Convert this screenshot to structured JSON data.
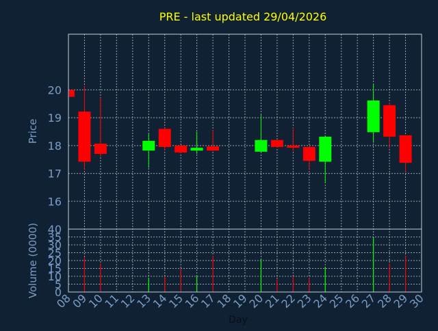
{
  "title": "PRE - last updated 29/04/2026",
  "chart_data": [
    {
      "type": "candlestick",
      "ylabel": "Price",
      "ylim": [
        15,
        22
      ],
      "yticks": [
        16,
        17,
        18,
        19,
        20
      ],
      "grid": true,
      "up_color": "#00ff00",
      "down_color": "#ff0000",
      "candles": [
        {
          "day": 8,
          "open": 20.0,
          "high": 20.0,
          "low": 19.72,
          "close": 19.75
        },
        {
          "day": 9,
          "open": 19.22,
          "high": 20.15,
          "low": 17.15,
          "close": 17.42
        },
        {
          "day": 10,
          "open": 18.07,
          "high": 19.72,
          "low": 17.6,
          "close": 17.7
        },
        {
          "day": 13,
          "open": 17.82,
          "high": 18.42,
          "low": 17.2,
          "close": 18.17
        },
        {
          "day": 14,
          "open": 18.6,
          "high": 18.65,
          "low": 17.82,
          "close": 17.95
        },
        {
          "day": 15,
          "open": 18.0,
          "high": 18.02,
          "low": 17.72,
          "close": 17.75
        },
        {
          "day": 16,
          "open": 17.82,
          "high": 18.5,
          "low": 17.7,
          "close": 17.92
        },
        {
          "day": 17,
          "open": 17.97,
          "high": 18.55,
          "low": 17.8,
          "close": 17.82
        },
        {
          "day": 20,
          "open": 17.78,
          "high": 19.1,
          "low": 17.75,
          "close": 18.2
        },
        {
          "day": 21,
          "open": 18.2,
          "high": 18.2,
          "low": 17.92,
          "close": 17.95
        },
        {
          "day": 22,
          "open": 18.0,
          "high": 18.65,
          "low": 17.8,
          "close": 17.92
        },
        {
          "day": 23,
          "open": 17.95,
          "high": 17.98,
          "low": 17.15,
          "close": 17.45
        },
        {
          "day": 24,
          "open": 17.42,
          "high": 18.35,
          "low": 16.65,
          "close": 18.32
        },
        {
          "day": 27,
          "open": 18.48,
          "high": 20.22,
          "low": 18.1,
          "close": 19.62
        },
        {
          "day": 28,
          "open": 19.45,
          "high": 19.55,
          "low": 17.9,
          "close": 18.32
        },
        {
          "day": 29,
          "open": 18.37,
          "high": 18.37,
          "low": 17.05,
          "close": 17.38
        }
      ]
    },
    {
      "type": "bar",
      "ylabel": "Volume (0000)",
      "xlabel": "Day",
      "ylim": [
        0,
        40
      ],
      "yticks": [
        0,
        5,
        10,
        15,
        20,
        25,
        30,
        35,
        40
      ],
      "grid": true,
      "categories": [
        "08",
        "09",
        "10",
        "11",
        "12",
        "13",
        "14",
        "15",
        "16",
        "17",
        "18",
        "19",
        "20",
        "21",
        "22",
        "23",
        "24",
        "25",
        "26",
        "27",
        "28",
        "29",
        "30"
      ],
      "bars": [
        {
          "day": 9,
          "value": 22,
          "direction": "down"
        },
        {
          "day": 10,
          "value": 18,
          "direction": "down"
        },
        {
          "day": 13,
          "value": 9,
          "direction": "up"
        },
        {
          "day": 14,
          "value": 10,
          "direction": "down"
        },
        {
          "day": 15,
          "value": 15,
          "direction": "down"
        },
        {
          "day": 16,
          "value": 10,
          "direction": "up"
        },
        {
          "day": 17,
          "value": 23,
          "direction": "down"
        },
        {
          "day": 20,
          "value": 21,
          "direction": "up"
        },
        {
          "day": 21,
          "value": 8,
          "direction": "down"
        },
        {
          "day": 22,
          "value": 10,
          "direction": "down"
        },
        {
          "day": 23,
          "value": 9,
          "direction": "down"
        },
        {
          "day": 24,
          "value": 16,
          "direction": "up"
        },
        {
          "day": 27,
          "value": 35,
          "direction": "up"
        },
        {
          "day": 28,
          "value": 18,
          "direction": "down"
        },
        {
          "day": 29,
          "value": 23,
          "direction": "down"
        }
      ]
    }
  ],
  "colors": {
    "background": "#0f2133",
    "title": "#ffff00",
    "axis_text": "#7a9ec8",
    "grid": "#c8d0d8",
    "frame": "#c8d0d8"
  }
}
